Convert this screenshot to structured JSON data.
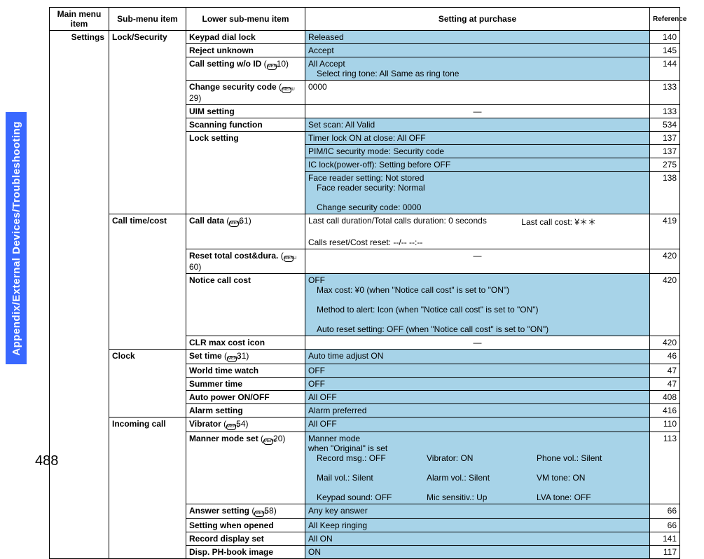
{
  "sidebar_label": "Appendix/External Devices/Troubleshooting",
  "page_number": "488",
  "headers": {
    "main": "Main menu item",
    "sub": "Sub-menu item",
    "lower": "Lower sub-menu item",
    "setting": "Setting at purchase",
    "ref": "Reference"
  },
  "column_widths": {
    "main": 85,
    "sub": 110,
    "lower": 170,
    "setting": 492,
    "ref": 43
  },
  "main_item": "Settings",
  "groups": [
    {
      "sub": "Lock/Security",
      "rows": [
        {
          "lower": "Keypad dial lock",
          "shade": true,
          "setting": [
            "Released"
          ],
          "ref": "140"
        },
        {
          "lower": "Reject unknown",
          "shade": true,
          "setting": [
            "Accept"
          ],
          "ref": "145"
        },
        {
          "lower": "Call setting w/o ID",
          "menu_num": "10",
          "shade": true,
          "setting": [
            "All Accept",
            {
              "indent": true,
              "text": "Select ring tone: All Same as ring tone"
            }
          ],
          "ref": "144"
        },
        {
          "lower": "Change security code",
          "menu_num": "29",
          "setting": [
            "0000"
          ],
          "ref": "133"
        },
        {
          "lower": "UIM setting",
          "center": true,
          "setting": [
            "—"
          ],
          "ref": "133"
        },
        {
          "lower": "Scanning function",
          "shade": true,
          "setting": [
            "Set scan: All Valid"
          ],
          "ref": "534"
        },
        {
          "lower": "Lock setting",
          "lower_rowspan": 4,
          "shade": true,
          "setting": [
            "Timer lock ON at close: All OFF"
          ],
          "ref": "137"
        },
        {
          "shade": true,
          "setting": [
            "PIM/IC security mode: Security code"
          ],
          "ref": "137"
        },
        {
          "shade": true,
          "setting": [
            "IC lock(power-off): Setting before OFF"
          ],
          "ref": "275"
        },
        {
          "shade": true,
          "setting": [
            "Face reader setting: Not stored",
            {
              "indent": true,
              "text": "Face reader security: Normal"
            },
            {
              "indent": true,
              "text": "Change security code: 0000"
            }
          ],
          "ref": "138"
        }
      ]
    },
    {
      "sub": "Call time/cost",
      "rows": [
        {
          "lower": "Call data",
          "menu_num": "61",
          "setting": [
            {
              "split": [
                "Last call duration/Total calls duration: 0 seconds",
                "Last call cost: ¥＊＊"
              ]
            },
            "Calls reset/Cost reset: --/-- --:--"
          ],
          "ref": "419"
        },
        {
          "lower": "Reset total cost&dura.",
          "menu_num": "60",
          "center": true,
          "setting": [
            "—"
          ],
          "ref": "420"
        },
        {
          "lower": "Notice call cost",
          "shade": true,
          "setting": [
            "OFF",
            {
              "indent": true,
              "text": "Max cost: ¥0 (when \"Notice call cost\" is set to \"ON\")"
            },
            {
              "indent": true,
              "text": "Method to alert: Icon (when \"Notice call cost\" is set to \"ON\")"
            },
            {
              "indent": true,
              "text": "Auto reset setting: OFF (when \"Notice call cost\" is set to \"ON\")"
            }
          ],
          "ref": "420"
        },
        {
          "lower": "CLR max cost icon",
          "center": true,
          "setting": [
            "—"
          ],
          "ref": "420"
        }
      ]
    },
    {
      "sub": "Clock",
      "rows": [
        {
          "lower": "Set time",
          "menu_num": "31",
          "shade": true,
          "setting": [
            "Auto time adjust ON"
          ],
          "ref": "46"
        },
        {
          "lower": "World time watch",
          "shade": true,
          "setting": [
            "OFF"
          ],
          "ref": "47"
        },
        {
          "lower": "Summer time",
          "shade": true,
          "setting": [
            "OFF"
          ],
          "ref": "47"
        },
        {
          "lower": "Auto power ON/OFF",
          "shade": true,
          "setting": [
            "All OFF"
          ],
          "ref": "408"
        },
        {
          "lower": "Alarm setting",
          "shade": true,
          "setting": [
            "Alarm preferred"
          ],
          "ref": "416"
        }
      ]
    },
    {
      "sub": "Incoming call",
      "rows": [
        {
          "lower": "Vibrator",
          "menu_num": "54",
          "shade": true,
          "setting": [
            "All OFF"
          ],
          "ref": "110"
        },
        {
          "lower": "Manner mode set",
          "menu_num": "20",
          "shade": true,
          "setting": [
            "Manner mode",
            "when \"Original\" is set",
            {
              "indent": true,
              "row3": [
                "Record msg.: OFF",
                "Vibrator: ON",
                "Phone vol.: Silent"
              ]
            },
            {
              "indent": true,
              "row3": [
                "Mail vol.: Silent",
                "Alarm vol.: Silent",
                "VM tone: ON"
              ]
            },
            {
              "indent": true,
              "row3": [
                "Keypad sound: OFF",
                "Mic sensitiv.: Up",
                "LVA tone: OFF"
              ]
            }
          ],
          "ref": "113"
        },
        {
          "lower": "Answer setting",
          "menu_num": "58",
          "shade": true,
          "setting": [
            "Any key answer"
          ],
          "ref": "66"
        },
        {
          "lower": "Setting when opened",
          "shade": true,
          "setting": [
            "All Keep ringing"
          ],
          "ref": "66"
        },
        {
          "lower": "Record display set",
          "shade": true,
          "setting": [
            "All ON"
          ],
          "ref": "141"
        },
        {
          "lower": "Disp. PH-book image",
          "shade": true,
          "setting": [
            "ON"
          ],
          "ref": "117"
        }
      ]
    }
  ]
}
